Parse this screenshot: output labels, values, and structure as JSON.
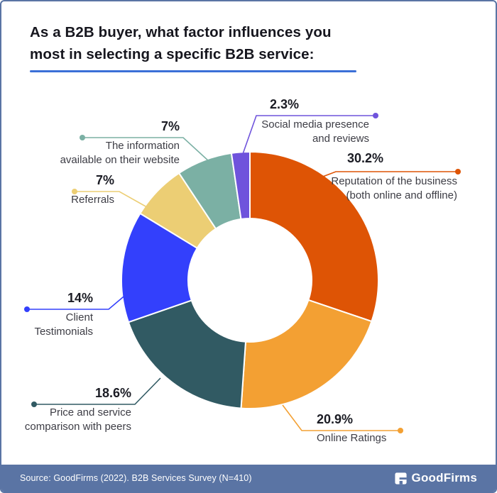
{
  "title": "As a B2B buyer, what factor influences you\nmost in selecting a specific B2B service:",
  "colors": {
    "border": "#5A74A4",
    "footer_bg": "#5A74A4",
    "title_underline": "#3B6FD7",
    "title_text": "#16161E"
  },
  "footer": {
    "source_text": "Source: GoodFirms (2022). B2B Services Survey (N=410)",
    "brand": "GoodFirms"
  },
  "chart_data": {
    "type": "pie",
    "subtype": "donut",
    "title": "As a B2B buyer, what factor influences you most in selecting a specific B2B service:",
    "start_angle_deg": 0,
    "direction": "clockwise",
    "donut_hole_ratio": 0.48,
    "legend_position": "callout-labels",
    "segments": [
      {
        "id": "reputation",
        "label": "Reputation of the business\n(both online and offline)",
        "value": 30.2,
        "display": "30.2%",
        "color": "#DE5405"
      },
      {
        "id": "online-ratings",
        "label": "Online Ratings",
        "value": 20.9,
        "display": "20.9%",
        "color": "#F3A033"
      },
      {
        "id": "price-comparison",
        "label": "Price and service\ncomparison with peers",
        "value": 18.6,
        "display": "18.6%",
        "color": "#315A63"
      },
      {
        "id": "client-testimonials",
        "label": "Client\nTestimonials",
        "value": 14,
        "display": "14%",
        "color": "#3340FC"
      },
      {
        "id": "referrals",
        "label": "Referrals",
        "value": 7,
        "display": "7%",
        "color": "#ECCE74"
      },
      {
        "id": "website-information",
        "label": "The information\navailable on their website",
        "value": 7,
        "display": "7%",
        "color": "#7BB0A4"
      },
      {
        "id": "social-media",
        "label": "Social media presence\nand reviews",
        "value": 2.3,
        "display": "2.3%",
        "color": "#6F53DC"
      }
    ]
  }
}
